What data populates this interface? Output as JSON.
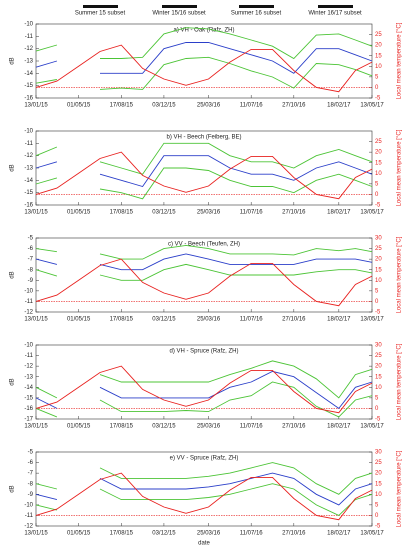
{
  "subsets": [
    "Summer 15 subset",
    "Winter 15/16 subset",
    "Summer 16 subset",
    "Winter 16/17 subset"
  ],
  "chart_data": [
    {
      "type": "line",
      "title": "a) VH - Oak (Rafz, ZH)",
      "ylabel": "dB",
      "y2label": "Local mean temperature [°C]",
      "x": [
        "13/01/15",
        "07/03/15",
        "01/05/15",
        "24/06/15",
        "17/08/15",
        "10/10/15",
        "03/12/15",
        "28/01/16",
        "25/03/16",
        "18/05/16",
        "11/07/16",
        "03/09/16",
        "27/10/16",
        "23/12/16",
        "18/02/17",
        "01/04/17",
        "13/05/17"
      ],
      "xlim": [
        "13/01/15",
        "13/05/17"
      ],
      "xticks": [
        "13/01/15",
        "01/05/15",
        "17/08/15",
        "03/12/15",
        "25/03/16",
        "11/07/16",
        "27/10/16",
        "18/02/17",
        "13/05/17"
      ],
      "ylim": [
        -16,
        -10
      ],
      "yticks": [
        -16,
        -15,
        -14,
        -13,
        -12,
        -11,
        -10
      ],
      "y2lim": [
        -5,
        30
      ],
      "y2ticks": [
        -5,
        0,
        5,
        10,
        15,
        20,
        25
      ],
      "y2_refline": 0,
      "series": [
        {
          "color": "#4cc436",
          "values": [
            -12.2,
            -11.7,
            null,
            -12.8,
            -12.8,
            -12.7,
            -10.8,
            -10.3,
            -10.4,
            -10.8,
            -11.3,
            -11.8,
            -12.8,
            -10.9,
            -10.8,
            -11.3,
            -11.8
          ]
        },
        {
          "color": "#2b3fc9",
          "values": [
            -13.5,
            -13,
            null,
            -14,
            -14,
            -14,
            -12,
            -11.5,
            -11.5,
            -12,
            -12.5,
            -13,
            -14,
            -12,
            -12,
            -12.5,
            -13
          ]
        },
        {
          "color": "#4cc436",
          "values": [
            -14.8,
            -14.5,
            null,
            -15.3,
            -15.2,
            -15.3,
            -13.3,
            -12.8,
            -12.7,
            -13.2,
            -13.8,
            -14.3,
            -15.2,
            -13.2,
            -13.3,
            -13.7,
            -14.2
          ]
        },
        {
          "color": "#e8211f",
          "axis": "y2",
          "values": [
            0,
            3,
            10,
            17,
            20,
            9,
            4,
            1,
            4,
            12,
            18,
            18,
            8,
            0,
            -2,
            8,
            12
          ]
        }
      ]
    },
    {
      "type": "line",
      "title": "b) VH - Beech (Feiberg, BE)",
      "ylabel": "dB",
      "y2label": "Local mean temperature [°C]",
      "x": [
        "13/01/15",
        "07/03/15",
        "01/05/15",
        "24/06/15",
        "17/08/15",
        "10/10/15",
        "03/12/15",
        "28/01/16",
        "25/03/16",
        "18/05/16",
        "11/07/16",
        "03/09/16",
        "27/10/16",
        "23/12/16",
        "18/02/17",
        "01/04/17",
        "13/05/17"
      ],
      "xlim": [
        "13/01/15",
        "13/05/17"
      ],
      "xticks": [
        "13/01/15",
        "01/05/15",
        "17/08/15",
        "03/12/15",
        "25/03/16",
        "11/07/16",
        "27/10/16",
        "18/02/17",
        "13/05/17"
      ],
      "ylim": [
        -16,
        -10
      ],
      "yticks": [
        -16,
        -15,
        -14,
        -13,
        -12,
        -11,
        -10
      ],
      "y2lim": [
        -5,
        30
      ],
      "y2ticks": [
        -5,
        0,
        5,
        10,
        15,
        20,
        25
      ],
      "y2_refline": 0,
      "series": [
        {
          "color": "#4cc436",
          "values": [
            -12,
            -11.3,
            null,
            -12.5,
            -13,
            -13.5,
            -11,
            -11,
            -11,
            -12,
            -12.5,
            -12.5,
            -13,
            -12,
            -11.5,
            -12,
            -12.5
          ]
        },
        {
          "color": "#2b3fc9",
          "values": [
            -13,
            -12.5,
            null,
            -13.5,
            -14,
            -14.5,
            -12,
            -12,
            -12,
            -13,
            -13.5,
            -13.5,
            -14,
            -13,
            -12.5,
            -13,
            -13.5
          ]
        },
        {
          "color": "#4cc436",
          "values": [
            -14.3,
            -13.8,
            null,
            -14.7,
            -15,
            -15.5,
            -13,
            -13,
            -13.2,
            -14,
            -14.5,
            -14.5,
            -15,
            -14,
            -13.5,
            -14,
            -14.5
          ]
        },
        {
          "color": "#e8211f",
          "axis": "y2",
          "values": [
            0,
            3,
            10,
            17,
            20,
            9,
            4,
            1,
            4,
            12,
            18,
            18,
            8,
            0,
            -2,
            8,
            12
          ]
        }
      ]
    },
    {
      "type": "line",
      "title": "c) VV - Beech (Teufen, ZH)",
      "ylabel": "dB",
      "y2label": "Local mean temperature [°C]",
      "x": [
        "13/01/15",
        "07/03/15",
        "01/05/15",
        "24/06/15",
        "17/08/15",
        "10/10/15",
        "03/12/15",
        "28/01/16",
        "25/03/16",
        "18/05/16",
        "11/07/16",
        "03/09/16",
        "27/10/16",
        "23/12/16",
        "18/02/17",
        "01/04/17",
        "13/05/17"
      ],
      "xlim": [
        "13/01/15",
        "13/05/17"
      ],
      "xticks": [
        "13/01/15",
        "01/05/15",
        "17/08/15",
        "03/12/15",
        "25/03/16",
        "11/07/16",
        "27/10/16",
        "18/02/17",
        "13/05/17"
      ],
      "ylim": [
        -12,
        -5
      ],
      "yticks": [
        -12,
        -11,
        -10,
        -9,
        -8,
        -7,
        -6,
        -5
      ],
      "y2lim": [
        -5,
        30
      ],
      "y2ticks": [
        -5,
        0,
        5,
        10,
        15,
        20,
        25,
        30
      ],
      "y2_refline": 0,
      "series": [
        {
          "color": "#4cc436",
          "values": [
            -6,
            -6.3,
            null,
            -6.5,
            -7,
            -7,
            -6,
            -5.7,
            -6,
            -6.5,
            -6.5,
            -6.5,
            -6.6,
            -6,
            -6.2,
            -6,
            -6.3
          ]
        },
        {
          "color": "#2b3fc9",
          "values": [
            -7,
            -7.5,
            null,
            -7.5,
            -8,
            -8,
            -7,
            -6.5,
            -7,
            -7.5,
            -7.5,
            -7.5,
            -7.5,
            -7,
            -7,
            -7,
            -7.3
          ]
        },
        {
          "color": "#4cc436",
          "values": [
            -8,
            -8.6,
            null,
            -8.5,
            -9,
            -9,
            -8,
            -7.5,
            -8,
            -8.5,
            -8.5,
            -8.5,
            -8.5,
            -8.2,
            -8,
            -8,
            -8.3
          ]
        },
        {
          "color": "#e8211f",
          "axis": "y2",
          "values": [
            0,
            3,
            10,
            17,
            20,
            9,
            4,
            1,
            4,
            12,
            18,
            18,
            8,
            0,
            -2,
            8,
            12
          ]
        }
      ]
    },
    {
      "type": "line",
      "title": "d) VH - Spruce (Rafz, ZH)",
      "ylabel": "dB",
      "y2label": "Local mean temperature [°C]",
      "x": [
        "13/01/15",
        "07/03/15",
        "01/05/15",
        "24/06/15",
        "17/08/15",
        "10/10/15",
        "03/12/15",
        "28/01/16",
        "25/03/16",
        "18/05/16",
        "11/07/16",
        "03/09/16",
        "27/10/16",
        "23/12/16",
        "18/02/17",
        "01/04/17",
        "13/05/17"
      ],
      "xlim": [
        "13/01/15",
        "13/05/17"
      ],
      "xticks": [
        "13/01/15",
        "01/05/15",
        "17/08/15",
        "03/12/15",
        "25/03/16",
        "11/07/16",
        "27/10/16",
        "18/02/17",
        "13/05/17"
      ],
      "ylim": [
        -17,
        -10
      ],
      "yticks": [
        -17,
        -16,
        -15,
        -14,
        -13,
        -12,
        -11,
        -10
      ],
      "y2lim": [
        -5,
        30
      ],
      "y2ticks": [
        -5,
        0,
        5,
        10,
        15,
        20,
        25,
        30
      ],
      "y2_refline": 0,
      "series": [
        {
          "color": "#4cc436",
          "values": [
            -14,
            -15,
            null,
            -12.8,
            -13.5,
            -13.5,
            -13.5,
            -13.5,
            -13.5,
            -12.8,
            -12.2,
            -11.5,
            -12,
            -13.2,
            -15,
            -12.8,
            -12.3
          ]
        },
        {
          "color": "#2b3fc9",
          "values": [
            -15,
            -16,
            null,
            -14,
            -15,
            -15,
            -15,
            -15,
            -15,
            -14,
            -13.5,
            -12.5,
            -13,
            -14.5,
            -16,
            -14,
            -13.5
          ]
        },
        {
          "color": "#4cc436",
          "values": [
            -16,
            -16.8,
            null,
            -15.2,
            -16.3,
            -16.3,
            -16.3,
            -16.2,
            -16.3,
            -15.2,
            -14.8,
            -13.5,
            -14,
            -15.8,
            -16.8,
            -15.2,
            -14.8
          ]
        },
        {
          "color": "#e8211f",
          "axis": "y2",
          "values": [
            0,
            3,
            10,
            17,
            20,
            9,
            4,
            1,
            4,
            12,
            18,
            18,
            8,
            0,
            -2,
            8,
            12
          ]
        }
      ]
    },
    {
      "type": "line",
      "title": "e) VV - Spruce (Rafz, ZH)",
      "ylabel": "dB",
      "y2label": "Local mean temperature [°C]",
      "xlabel": "date",
      "x": [
        "13/01/15",
        "07/03/15",
        "01/05/15",
        "24/06/15",
        "17/08/15",
        "10/10/15",
        "03/12/15",
        "28/01/16",
        "25/03/16",
        "18/05/16",
        "11/07/16",
        "03/09/16",
        "27/10/16",
        "23/12/16",
        "18/02/17",
        "01/04/17",
        "13/05/17"
      ],
      "xlim": [
        "13/01/15",
        "13/05/17"
      ],
      "xticks": [
        "13/01/15",
        "01/05/15",
        "17/08/15",
        "03/12/15",
        "25/03/16",
        "11/07/16",
        "27/10/16",
        "18/02/17",
        "13/05/17"
      ],
      "ylim": [
        -12,
        -5
      ],
      "yticks": [
        -12,
        -11,
        -10,
        -9,
        -8,
        -7,
        -6,
        -5
      ],
      "y2lim": [
        -5,
        30
      ],
      "y2ticks": [
        -5,
        0,
        5,
        10,
        15,
        20,
        25,
        30
      ],
      "y2_refline": 0,
      "series": [
        {
          "color": "#4cc436",
          "values": [
            -8,
            -8.5,
            null,
            -6.5,
            -7.5,
            -7.5,
            -7.5,
            -7.5,
            -7.3,
            -7,
            -6.5,
            -6,
            -6.5,
            -8,
            -9,
            -7.5,
            -7
          ]
        },
        {
          "color": "#2b3fc9",
          "values": [
            -9,
            -9.5,
            null,
            -7.5,
            -8.5,
            -8.5,
            -8.5,
            -8.5,
            -8.3,
            -8,
            -7.5,
            -7,
            -7.5,
            -9,
            -10,
            -8.5,
            -8
          ]
        },
        {
          "color": "#4cc436",
          "values": [
            -10,
            -10.5,
            null,
            -8.5,
            -9.5,
            -9.5,
            -9.5,
            -9.5,
            -9.3,
            -9,
            -8.5,
            -8,
            -8.5,
            -10,
            -11,
            -9.5,
            -9
          ]
        },
        {
          "color": "#e8211f",
          "axis": "y2",
          "values": [
            0,
            3,
            10,
            17,
            20,
            9,
            4,
            1,
            4,
            12,
            18,
            18,
            8,
            0,
            -2,
            8,
            12
          ]
        }
      ]
    }
  ]
}
